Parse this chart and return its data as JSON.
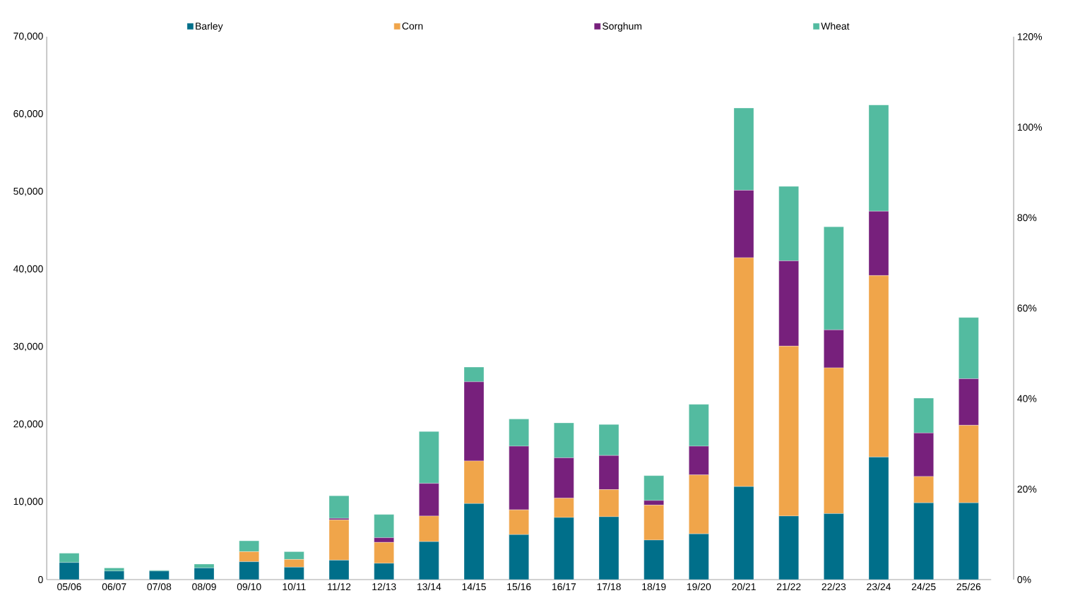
{
  "chart_data": {
    "type": "bar",
    "stacked": true,
    "categories": [
      "05/06",
      "06/07",
      "07/08",
      "08/09",
      "09/10",
      "10/11",
      "11/12",
      "12/13",
      "13/14",
      "14/15",
      "15/16",
      "16/17",
      "17/18",
      "18/19",
      "19/20",
      "20/21",
      "21/22",
      "22/23",
      "23/24",
      "24/25",
      "25/26"
    ],
    "series": [
      {
        "name": "Barley",
        "color": "#006f8a",
        "values": [
          2200,
          1100,
          1100,
          1500,
          2300,
          1600,
          2500,
          2100,
          4900,
          9800,
          5800,
          8000,
          8100,
          5100,
          5900,
          12000,
          8200,
          8500,
          15800,
          9900,
          9900
        ]
      },
      {
        "name": "Corn",
        "color": "#f0a54a",
        "values": [
          0,
          0,
          0,
          0,
          1300,
          1000,
          5200,
          2700,
          3300,
          5500,
          3200,
          2500,
          3500,
          4500,
          7600,
          29500,
          21900,
          18800,
          23400,
          3400,
          10000
        ]
      },
      {
        "name": "Sorghum",
        "color": "#77207c",
        "values": [
          null,
          0,
          0,
          0,
          null,
          0,
          200,
          600,
          4200,
          10200,
          8200,
          5200,
          4400,
          600,
          3700,
          8700,
          11000,
          4900,
          8300,
          5600,
          6000
        ]
      },
      {
        "name": "Wheat",
        "color": "#53bba0",
        "values": [
          1200,
          400,
          100,
          500,
          1400,
          1000,
          2900,
          3000,
          6700,
          1900,
          3500,
          4500,
          4000,
          3200,
          5400,
          10600,
          9600,
          13300,
          13700,
          4500,
          7900
        ]
      }
    ],
    "ylim": [
      0,
      70000
    ],
    "yticks": [
      0,
      {
        "value": 10000,
        "label": "10,000"
      },
      {
        "value": 20000,
        "label": "20,000"
      },
      {
        "value": 30000,
        "label": "30,000"
      },
      {
        "value": 40000,
        "label": "40,000"
      },
      {
        "value": 50000,
        "label": "50,000"
      },
      {
        "value": 60000,
        "label": "60,000"
      },
      {
        "value": 70000,
        "label": "70,000"
      }
    ],
    "y2lim": [
      0,
      120
    ],
    "y2ticks": [
      {
        "value": 0,
        "label": "0%"
      },
      {
        "value": 20,
        "label": "20%"
      },
      {
        "value": 40,
        "label": "40%"
      },
      {
        "value": 60,
        "label": "60%"
      },
      {
        "value": 80,
        "label": "80%"
      },
      {
        "value": 100,
        "label": "100%"
      },
      {
        "value": 120,
        "label": "120%"
      }
    ],
    "legend": "top",
    "grid": false
  }
}
